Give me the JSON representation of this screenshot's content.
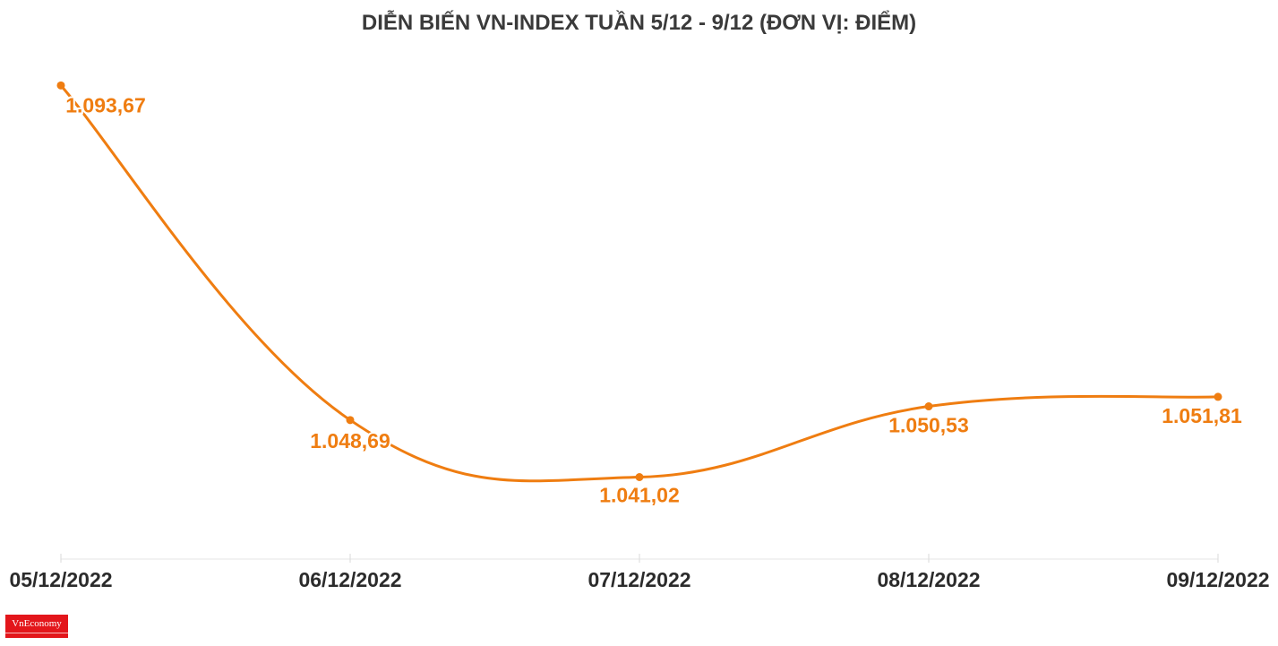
{
  "chart_data": {
    "type": "line",
    "title": "DIỄN BIẾN VN-INDEX TUẦN 5/12 - 9/12 (ĐƠN VỊ: ĐIỂM)",
    "categories": [
      "05/12/2022",
      "06/12/2022",
      "07/12/2022",
      "08/12/2022",
      "09/12/2022"
    ],
    "values": [
      1093.67,
      1048.69,
      1041.02,
      1050.53,
      1051.81
    ],
    "data_labels": [
      "1.093,67",
      "1.048,69",
      "1.041,02",
      "1.050,53",
      "1.051,81"
    ],
    "xlabel": "",
    "ylabel": "",
    "ylim": [
      1030,
      1096
    ],
    "grid": false,
    "legend": "none",
    "colors": {
      "line": "#ef7d11",
      "label": "#ef7d11",
      "axis_text": "#2b2b2b",
      "title": "#3a3a3a"
    }
  },
  "brand": {
    "logo_text": "VnEconomy",
    "logo_color": "#e3161b"
  }
}
